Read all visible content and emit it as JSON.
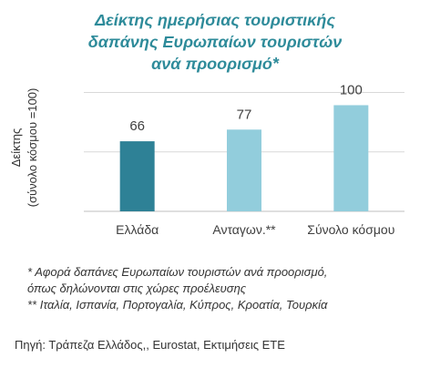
{
  "title_lines": [
    "Δείκτης ημερήσιας τουριστικής",
    "δαπάνης Ευρωπαίων τουριστών",
    "ανά προορισμό*"
  ],
  "chart_data": {
    "type": "bar",
    "title": "Δείκτης ημερήσιας τουριστικής δαπάνης Ευρωπαίων τουριστών ανά προορισμό*",
    "categories": [
      "Ελλάδα",
      "Ανταγων.**",
      "Σύνολο κόσμου"
    ],
    "values": [
      66,
      77,
      100
    ],
    "data_labels": [
      "66",
      "77",
      "100"
    ],
    "ylabel_lines": [
      "Δείκτης",
      "(σύνολο κόσμου =100)"
    ],
    "ylim": [
      0,
      115
    ],
    "grid": true,
    "colors": [
      "#2e8196",
      "#92cddc",
      "#92cddc"
    ]
  },
  "footnotes": [
    "* Αφορά δαπάνες Ευρωπαίων τουριστών ανά προορισμό,",
    "όπως δηλώνονται στις χώρες προέλευσης",
    "** Ιταλία, Ισπανία, Πορτογαλία, Κύπρος, Κροατία, Τουρκία"
  ],
  "source": "Πηγή: Τράπεζα Ελλάδος,, Eurostat, Εκτιμήσεις ΕΤΕ"
}
